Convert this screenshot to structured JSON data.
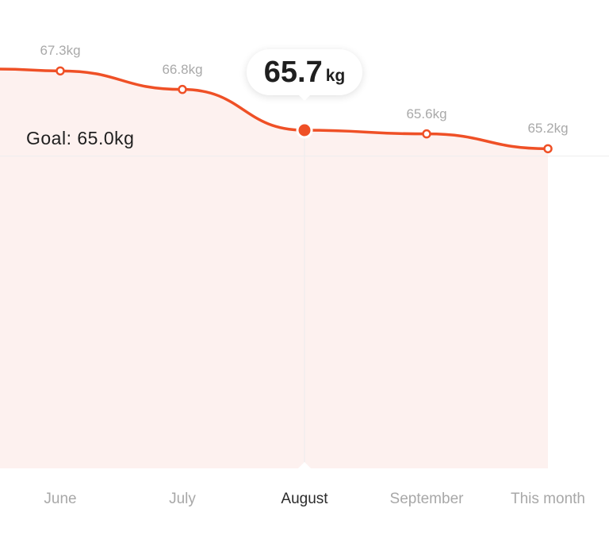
{
  "chart_data": {
    "type": "area",
    "categories": [
      "June",
      "July",
      "August",
      "September",
      "This month"
    ],
    "values": [
      67.3,
      66.8,
      65.7,
      65.6,
      65.2
    ],
    "point_labels": [
      "67.3kg",
      "66.8kg",
      "",
      "65.6kg",
      "65.2kg"
    ],
    "unit": "kg",
    "goal": {
      "label": "Goal: 65.0kg",
      "value": 65.0
    },
    "selected_index": 2,
    "tooltip": {
      "value": "65.7",
      "unit": "kg"
    },
    "colors": {
      "line": "#ef5026",
      "fill": "#fdf1ef",
      "goal_line": "#eeeeee"
    }
  }
}
